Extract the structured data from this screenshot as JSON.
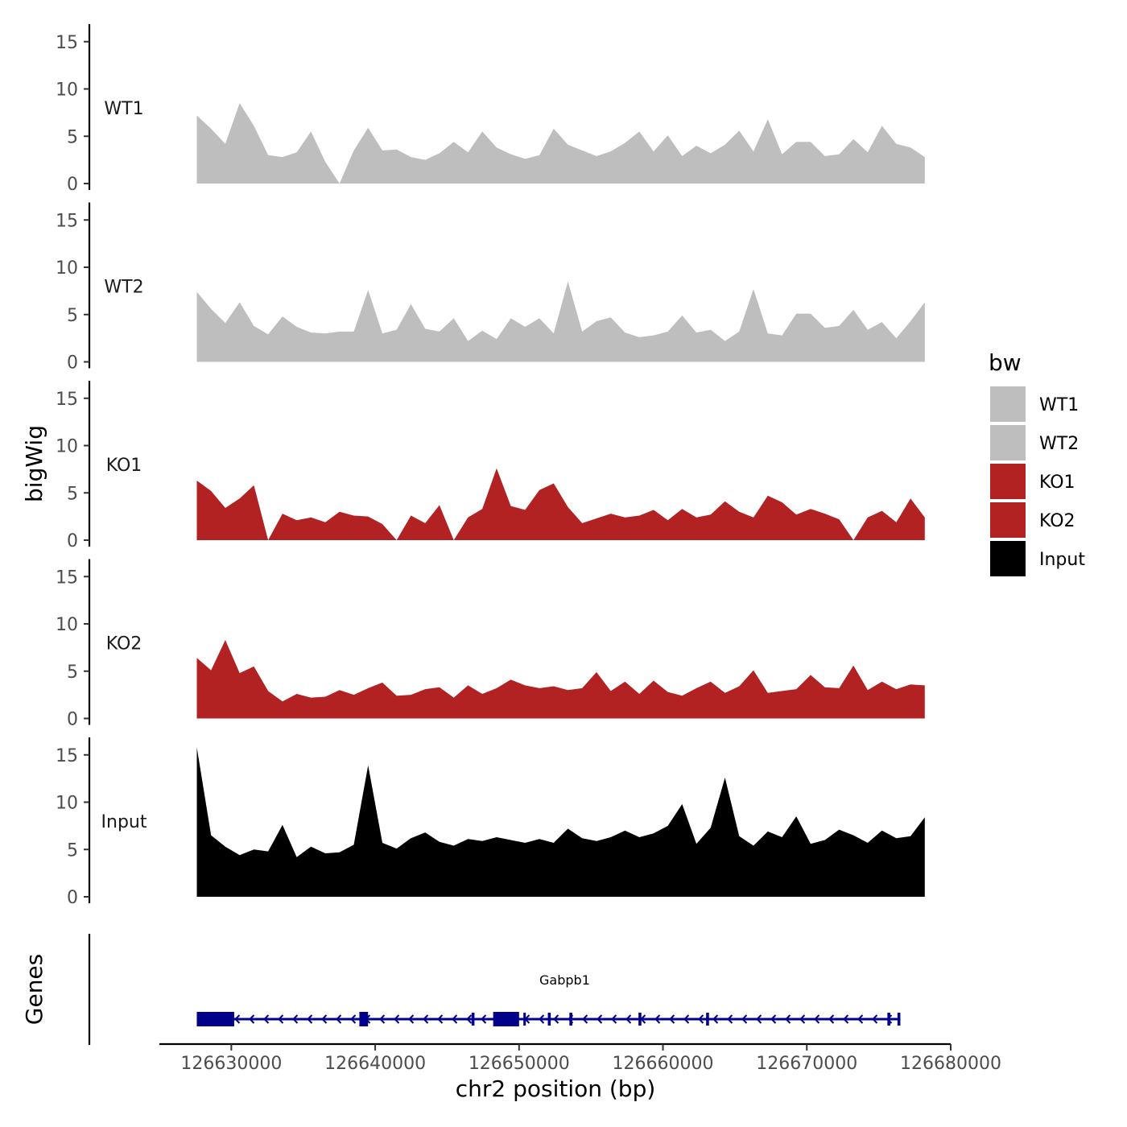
{
  "chart_data": {
    "type": "area",
    "chromosome": "chr2",
    "xlabel": "chr2 position (bp)",
    "ylabel_tracks": "bigWig",
    "ylabel_genes": "Genes",
    "xlim": [
      126625000,
      126680000
    ],
    "data_xrange": [
      126627600,
      126678200
    ],
    "x_ticks": [
      126630000,
      126640000,
      126650000,
      126660000,
      126670000,
      126680000
    ],
    "x_tick_labels": [
      "126630000",
      "126640000",
      "126650000",
      "126660000",
      "126670000",
      "126680000"
    ],
    "ylim": [
      0,
      16
    ],
    "y_ticks": [
      0,
      5,
      10,
      15
    ],
    "y_tick_labels": [
      "0",
      "5",
      "10",
      "15"
    ],
    "legend": {
      "title": "bw",
      "entries": [
        {
          "name": "WT1",
          "color": "#bebebe"
        },
        {
          "name": "WT2",
          "color": "#bebebe"
        },
        {
          "name": "KO1",
          "color": "#b22222"
        },
        {
          "name": "KO2",
          "color": "#b22222"
        },
        {
          "name": "Input",
          "color": "#000000"
        }
      ]
    },
    "series": [
      {
        "name": "WT1",
        "color": "#bebebe",
        "x_start": 126627600,
        "x_step": 1000,
        "values": [
          7.2,
          5.8,
          4.2,
          8.5,
          6.1,
          3.0,
          2.8,
          3.3,
          5.5,
          2.3,
          0,
          3.5,
          5.9,
          3.5,
          3.6,
          2.8,
          2.5,
          3.2,
          4.4,
          3.3,
          5.5,
          3.8,
          3.1,
          2.6,
          3.0,
          5.8,
          4.1,
          3.5,
          2.9,
          3.4,
          4.3,
          5.5,
          3.4,
          5.1,
          2.9,
          4.0,
          3.2,
          4.1,
          5.6,
          3.4,
          6.8,
          3.1,
          4.4,
          4.4,
          2.9,
          3.1,
          4.7,
          3.3,
          6.1,
          4.2,
          3.8,
          2.8
        ]
      },
      {
        "name": "WT2",
        "color": "#bebebe",
        "x_start": 126627600,
        "x_step": 1000,
        "values": [
          7.4,
          5.6,
          4.1,
          6.3,
          3.8,
          2.9,
          4.8,
          3.7,
          3.1,
          3.0,
          3.2,
          3.2,
          7.6,
          3.0,
          3.4,
          6.1,
          3.5,
          3.2,
          4.6,
          2.2,
          3.3,
          2.4,
          4.6,
          3.7,
          4.6,
          3.0,
          8.5,
          3.2,
          4.3,
          4.7,
          3.1,
          2.6,
          2.8,
          3.2,
          4.9,
          3.1,
          3.4,
          2.2,
          3.2,
          7.7,
          3.0,
          2.8,
          5.1,
          5.1,
          3.6,
          3.8,
          5.5,
          3.4,
          4.2,
          2.5,
          4.3,
          6.3
        ]
      },
      {
        "name": "KO1",
        "color": "#b22222",
        "x_start": 126627600,
        "x_step": 1000,
        "values": [
          6.3,
          5.2,
          3.4,
          4.4,
          5.8,
          0,
          2.8,
          2.1,
          2.4,
          1.9,
          3.0,
          2.6,
          2.5,
          1.7,
          0,
          2.6,
          1.8,
          3.7,
          0,
          2.4,
          3.3,
          7.6,
          3.6,
          3.2,
          5.3,
          6.0,
          3.5,
          1.8,
          2.3,
          2.8,
          2.4,
          2.6,
          3.2,
          2.1,
          3.3,
          2.4,
          2.7,
          4.1,
          3.0,
          2.4,
          4.7,
          4.0,
          2.7,
          3.3,
          2.8,
          2.2,
          0,
          2.4,
          3.1,
          1.9,
          4.4,
          2.4
        ]
      },
      {
        "name": "KO2",
        "color": "#b22222",
        "x_start": 126627600,
        "x_step": 1000,
        "values": [
          6.4,
          5.1,
          8.3,
          4.8,
          5.5,
          2.9,
          1.8,
          2.6,
          2.2,
          2.3,
          3.0,
          2.5,
          3.2,
          3.8,
          2.4,
          2.5,
          3.1,
          3.3,
          2.2,
          3.5,
          2.6,
          3.2,
          4.1,
          3.5,
          3.2,
          3.4,
          3.0,
          3.2,
          4.9,
          2.9,
          3.9,
          2.6,
          4.0,
          2.8,
          2.4,
          3.2,
          3.9,
          2.7,
          3.4,
          5.1,
          2.7,
          2.9,
          3.1,
          4.6,
          3.3,
          3.2,
          5.6,
          3.0,
          3.9,
          3.1,
          3.6,
          3.5
        ]
      },
      {
        "name": "Input",
        "color": "#000000",
        "x_start": 126627600,
        "x_step": 1000,
        "values": [
          15.8,
          6.5,
          5.3,
          4.4,
          5.0,
          4.8,
          7.6,
          4.2,
          5.3,
          4.6,
          4.7,
          5.5,
          13.9,
          5.7,
          5.1,
          6.2,
          6.8,
          5.8,
          5.4,
          6.1,
          5.9,
          6.3,
          6.0,
          5.7,
          6.1,
          5.7,
          7.2,
          6.2,
          5.9,
          6.3,
          7.0,
          6.3,
          6.7,
          7.5,
          9.8,
          5.6,
          7.3,
          12.6,
          6.4,
          5.4,
          6.9,
          6.3,
          8.5,
          5.6,
          6.0,
          7.1,
          6.5,
          5.7,
          7.0,
          6.2,
          6.4,
          8.4
        ]
      }
    ],
    "genes": [
      {
        "name": "Gabpb1",
        "strand": "-",
        "start": 126627600,
        "end": 126676500,
        "exons": [
          [
            126627600,
            126630200
          ],
          [
            126638900,
            126639500
          ],
          [
            126646700,
            126646900
          ],
          [
            126648200,
            126650000
          ],
          [
            126650300,
            126650400
          ],
          [
            126652000,
            126652200
          ],
          [
            126653500,
            126653700
          ],
          [
            126658300,
            126658500
          ],
          [
            126663000,
            126663200
          ],
          [
            126675600,
            126675800
          ],
          [
            126676300,
            126676500
          ]
        ]
      }
    ]
  }
}
